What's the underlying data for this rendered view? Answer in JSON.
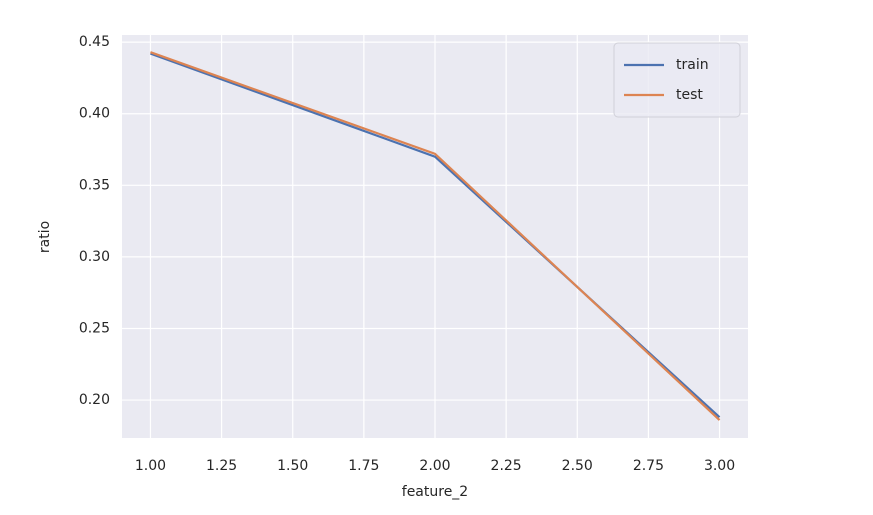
{
  "chart_data": {
    "type": "line",
    "xlabel": "feature_2",
    "ylabel": "ratio",
    "x": [
      1,
      2,
      3
    ],
    "series": [
      {
        "name": "train",
        "color": "#4c72b0",
        "values": [
          0.442,
          0.37,
          0.188
        ]
      },
      {
        "name": "test",
        "color": "#dd8452",
        "values": [
          0.443,
          0.372,
          0.186
        ]
      }
    ],
    "xlim": [
      0.9,
      3.1
    ],
    "xticks": [
      {
        "value": 1,
        "label": "1.00"
      },
      {
        "value": 1.25,
        "label": "1.25"
      },
      {
        "value": 1.5,
        "label": "1.50"
      },
      {
        "value": 1.75,
        "label": "1.75"
      },
      {
        "value": 2,
        "label": "2.00"
      },
      {
        "value": 2.25,
        "label": "2.25"
      },
      {
        "value": 2.5,
        "label": "2.50"
      },
      {
        "value": 2.75,
        "label": "2.75"
      },
      {
        "value": 3,
        "label": "3.00"
      }
    ],
    "ylim": [
      0.1735,
      0.455
    ],
    "yticks": [
      {
        "value": 0.2,
        "label": "0.20"
      },
      0.25,
      {
        "value": 0.3,
        "label": "0.30"
      },
      0.35,
      {
        "value": 0.4,
        "label": "0.40"
      },
      0.45
    ],
    "grid": true,
    "legend": "upper right"
  }
}
